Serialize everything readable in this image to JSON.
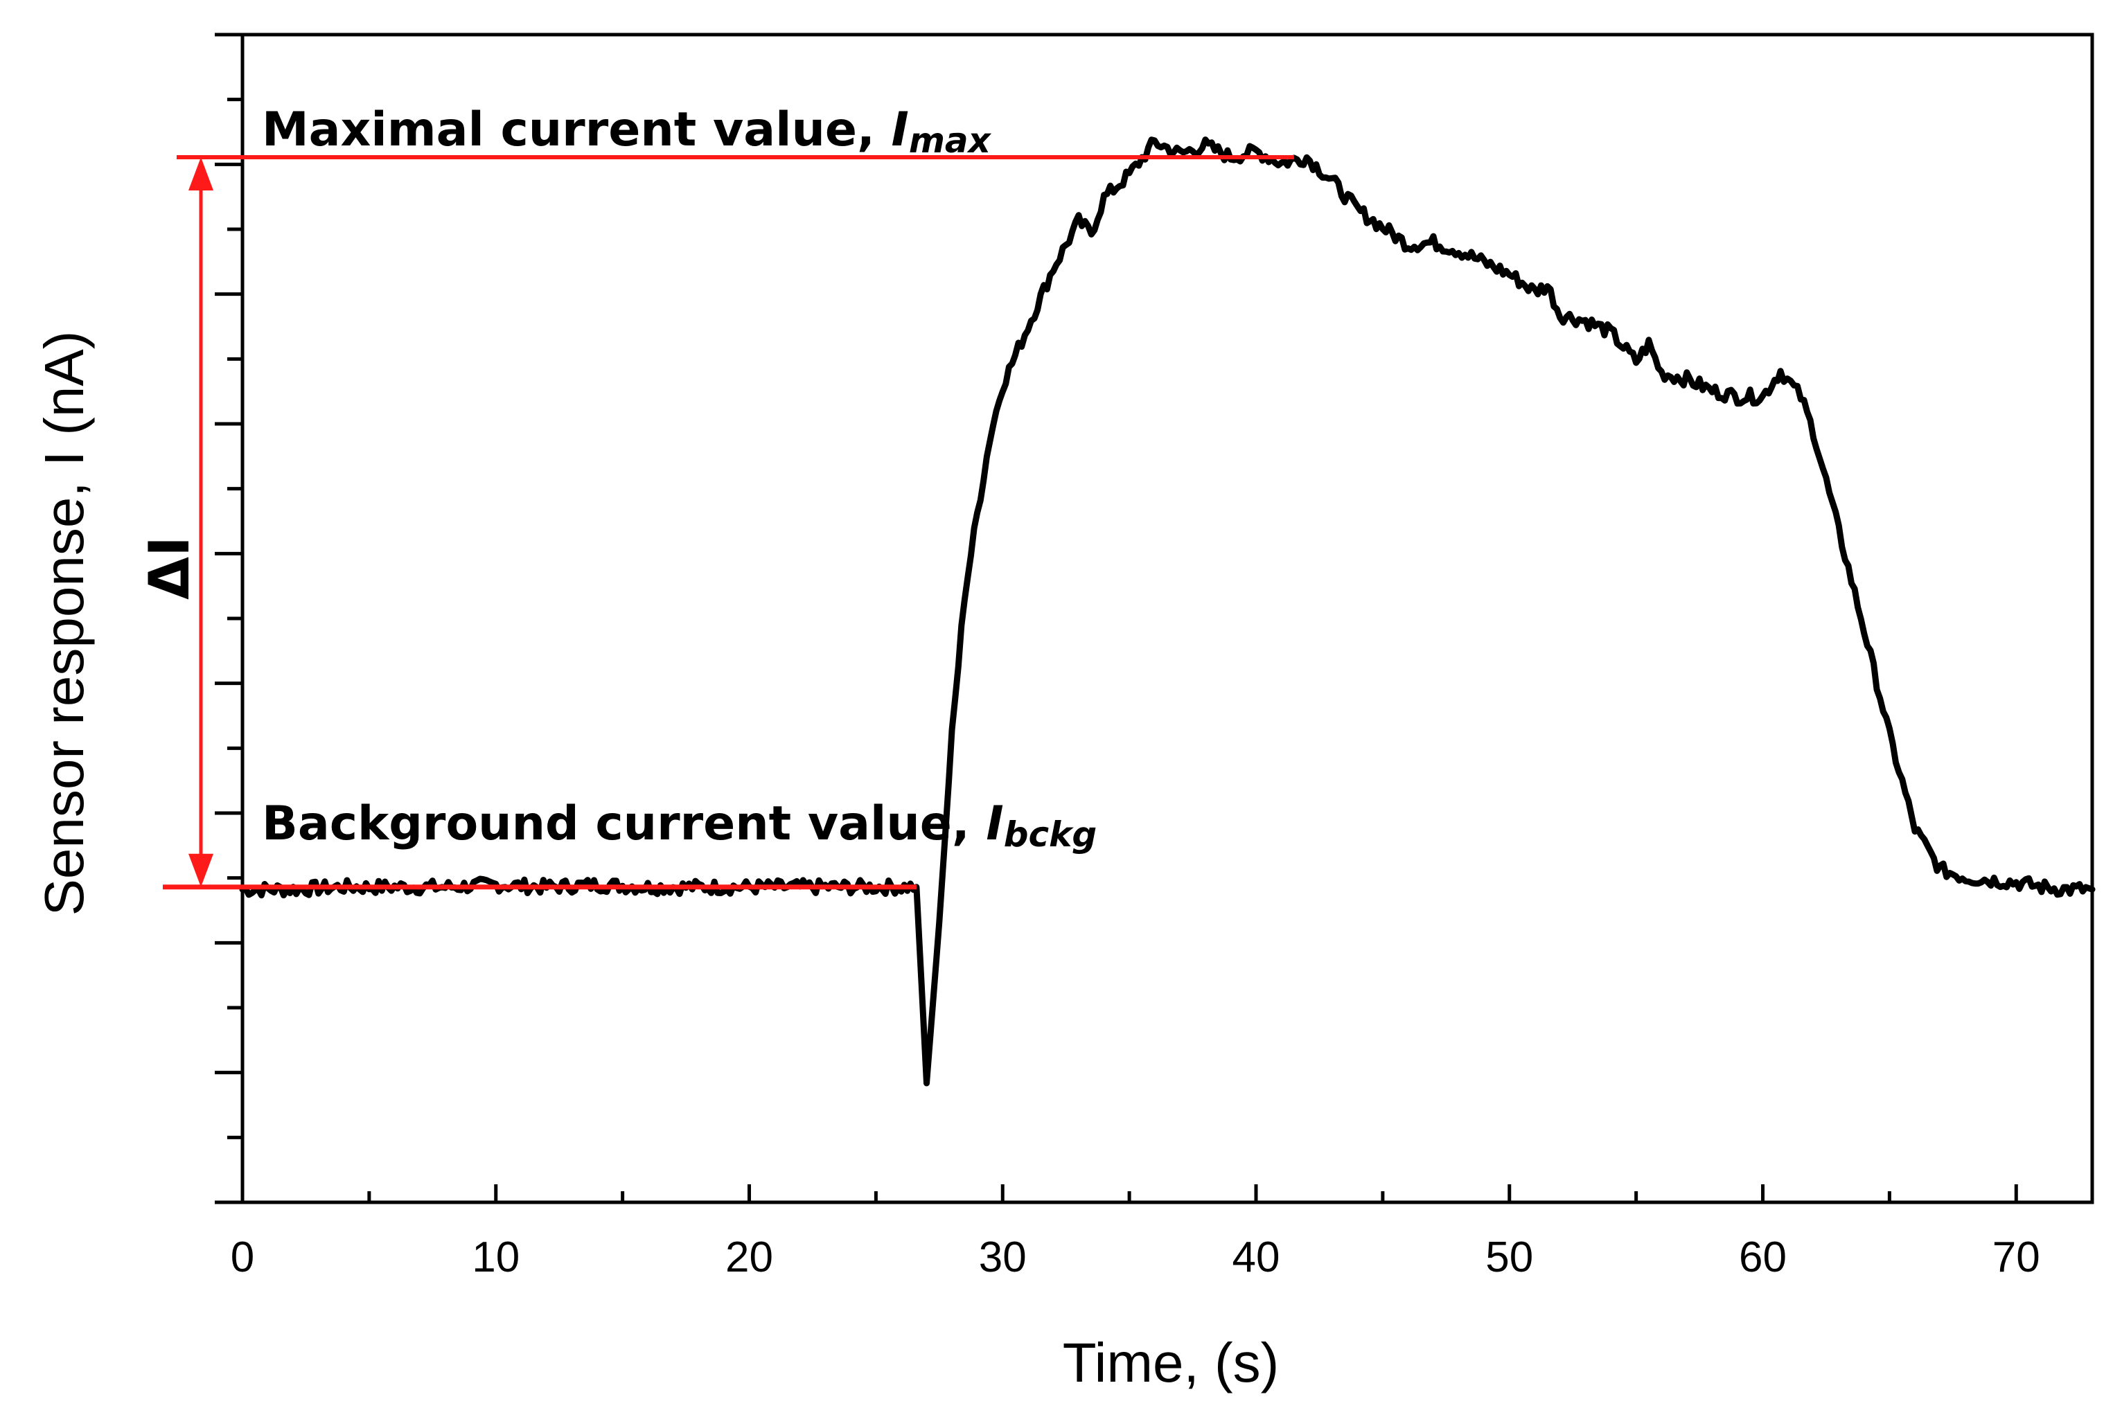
{
  "chart_data": {
    "type": "line",
    "title": "",
    "xlabel": "Time, (s)",
    "ylabel": "Sensor response, I (nA)",
    "xlim": [
      0,
      73
    ],
    "ylim": [
      0,
      1
    ],
    "x_ticks": [
      "0",
      "10",
      "20",
      "30",
      "40",
      "50",
      "60",
      "70"
    ],
    "grid": false,
    "series": [
      {
        "name": "Sensor response",
        "color": "#000000",
        "x": [
          0,
          2,
          4,
          6,
          8,
          10,
          12,
          14,
          16,
          18,
          20,
          22,
          24,
          26,
          26.6,
          27.0,
          27.5,
          28,
          28.5,
          29,
          29.5,
          30,
          31,
          32,
          33,
          33.5,
          34,
          35,
          36,
          37,
          38,
          39,
          40,
          41,
          42,
          43,
          44,
          45,
          46,
          47,
          48,
          49,
          50,
          51,
          51.5,
          52,
          53,
          54,
          55,
          55.5,
          56,
          57,
          58,
          59,
          60,
          60.7,
          61.5,
          62,
          63,
          64,
          65,
          66,
          67,
          68,
          69,
          70,
          71,
          72,
          73
        ],
        "values": [
          0.268,
          0.268,
          0.27,
          0.27,
          0.27,
          0.272,
          0.27,
          0.272,
          0.27,
          0.27,
          0.27,
          0.27,
          0.27,
          0.27,
          0.27,
          0.102,
          0.24,
          0.4,
          0.52,
          0.59,
          0.655,
          0.7,
          0.75,
          0.8,
          0.84,
          0.83,
          0.86,
          0.88,
          0.908,
          0.898,
          0.905,
          0.895,
          0.9,
          0.89,
          0.895,
          0.875,
          0.85,
          0.835,
          0.82,
          0.822,
          0.815,
          0.805,
          0.795,
          0.78,
          0.785,
          0.76,
          0.755,
          0.745,
          0.72,
          0.735,
          0.71,
          0.705,
          0.695,
          0.69,
          0.69,
          0.712,
          0.69,
          0.66,
          0.575,
          0.49,
          0.4,
          0.32,
          0.285,
          0.278,
          0.276,
          0.274,
          0.27,
          0.268,
          0.268
        ]
      }
    ],
    "annotations": {
      "max_label": "Maximal current value, ",
      "max_symbol": "I",
      "max_subscript": "max",
      "max_level": 0.895,
      "bg_label": "Background current value, ",
      "bg_symbol": "I",
      "bg_subscript": "bckg",
      "bg_level": 0.27,
      "delta_label": "ΔI",
      "line_color": "#ff1a1a"
    }
  }
}
